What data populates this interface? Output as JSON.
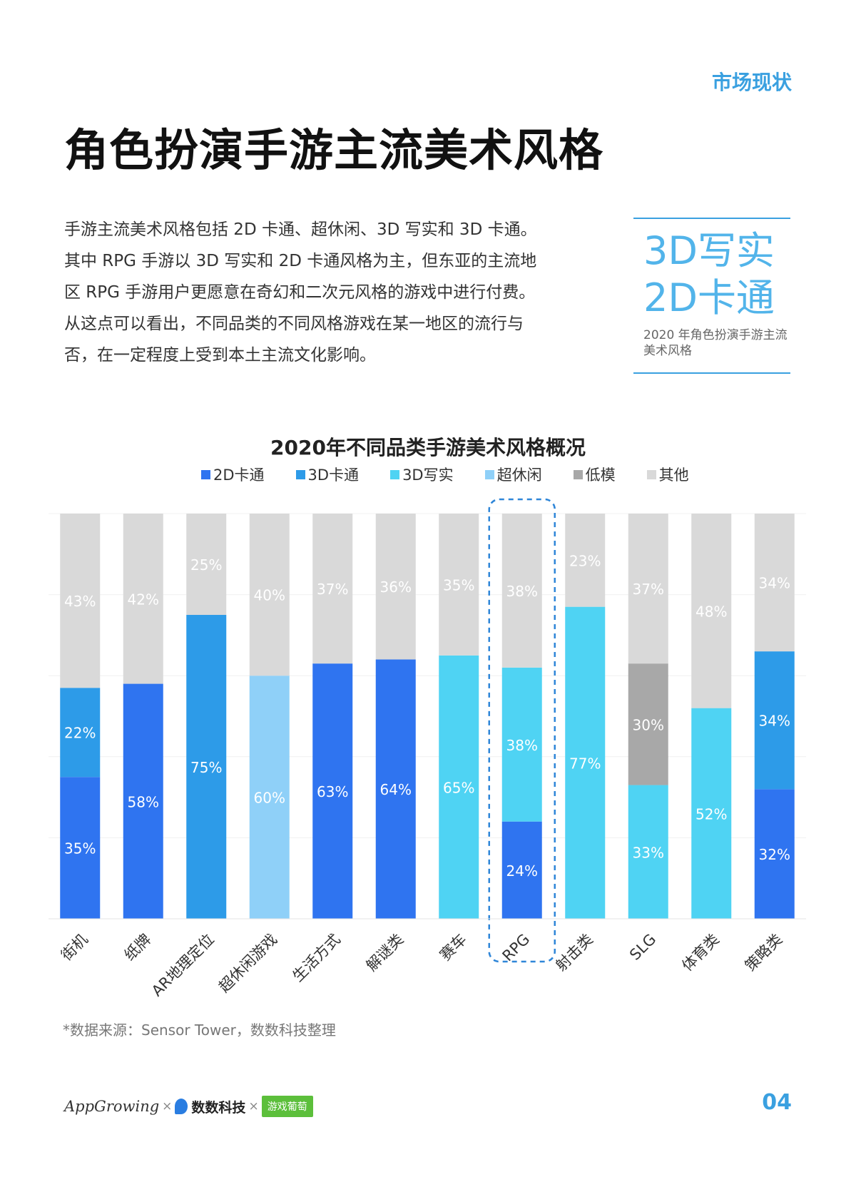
{
  "header": {
    "section_tag": "市场现状",
    "title": "角色扮演手游主流美术风格"
  },
  "intro": {
    "text": "手游主流美术风格包括 2D 卡通、超休闲、3D 写实和 3D 卡通。其中 RPG 手游以 3D 写实和 2D 卡通风格为主，但东亚的主流地区 RPG 手游用户更愿意在奇幻和二次元风格的游戏中进行付费。从这点可以看出，不同品类的不同风格游戏在某一地区的流行与否，在一定程度上受到本土主流文化影响。"
  },
  "callout": {
    "line1": "3D写实",
    "line2": "2D卡通",
    "caption": "2020 年角色扮演手游主流美术风格"
  },
  "chart_data": {
    "type": "bar",
    "stacked": true,
    "percent": true,
    "title": "2020年不同品类手游美术风格概况",
    "categories": [
      "街机",
      "纸牌",
      "AR地理定位",
      "超休闲游戏",
      "生活方式",
      "解谜类",
      "赛车",
      "RPG",
      "射击类",
      "SLG",
      "体育类",
      "策略类"
    ],
    "series": [
      {
        "name": "2D卡通",
        "color": "#2f74f0",
        "values": [
          35,
          58,
          0,
          0,
          63,
          64,
          0,
          24,
          0,
          0,
          0,
          32
        ]
      },
      {
        "name": "3D卡通",
        "color": "#2d9be8",
        "values": [
          22,
          0,
          75,
          0,
          0,
          0,
          0,
          0,
          0,
          0,
          0,
          34
        ]
      },
      {
        "name": "3D写实",
        "color": "#4fd3f3",
        "values": [
          0,
          0,
          0,
          0,
          0,
          0,
          65,
          38,
          77,
          33,
          52,
          0
        ]
      },
      {
        "name": "超休闲",
        "color": "#8fd0f8",
        "values": [
          0,
          0,
          0,
          60,
          0,
          0,
          0,
          0,
          0,
          0,
          0,
          0
        ]
      },
      {
        "name": "低模",
        "color": "#a8a8a8",
        "values": [
          0,
          0,
          0,
          0,
          0,
          0,
          0,
          0,
          0,
          30,
          0,
          0
        ]
      },
      {
        "name": "其他",
        "color": "#d9d9d9",
        "values": [
          43,
          42,
          25,
          40,
          37,
          36,
          35,
          38,
          23,
          37,
          48,
          34
        ]
      }
    ],
    "ylim": [
      0,
      100
    ],
    "highlight": "RPG",
    "legend_position": "top"
  },
  "source": "*数据来源：Sensor Tower，数数科技整理",
  "footer": {
    "logo1": "AppGrowing",
    "sep": "×",
    "logo2": "数数科技",
    "logo3": "游戏葡萄"
  },
  "page_number": "04"
}
